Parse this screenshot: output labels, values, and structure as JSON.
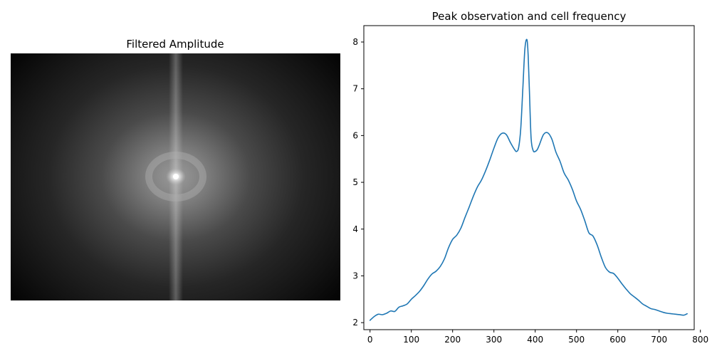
{
  "left_panel": {
    "title": "Filtered Amplitude"
  },
  "chart_data": {
    "type": "line",
    "title": "Peak observation and cell frequency",
    "xlabel": "",
    "ylabel": "",
    "xlim": [
      -15,
      785
    ],
    "ylim": [
      1.85,
      8.35
    ],
    "xticks": [
      0,
      100,
      200,
      300,
      400,
      500,
      600,
      700,
      800
    ],
    "yticks": [
      2,
      3,
      4,
      5,
      6,
      7,
      8
    ],
    "grid": false,
    "series": [
      {
        "color": "#1f77b4",
        "x": [
          0,
          10,
          20,
          30,
          40,
          50,
          60,
          70,
          80,
          90,
          100,
          110,
          120,
          130,
          140,
          150,
          160,
          170,
          180,
          190,
          200,
          210,
          220,
          230,
          240,
          250,
          260,
          270,
          280,
          290,
          300,
          310,
          320,
          330,
          340,
          350,
          355,
          360,
          365,
          370,
          375,
          380,
          383,
          386,
          390,
          395,
          400,
          405,
          410,
          420,
          430,
          440,
          450,
          460,
          470,
          480,
          490,
          500,
          510,
          520,
          530,
          540,
          550,
          560,
          570,
          580,
          590,
          600,
          610,
          620,
          630,
          640,
          650,
          660,
          670,
          680,
          690,
          700,
          710,
          720,
          730,
          740,
          750,
          760,
          768
        ],
        "values": [
          2.05,
          2.13,
          2.18,
          2.17,
          2.2,
          2.25,
          2.24,
          2.33,
          2.36,
          2.4,
          2.5,
          2.58,
          2.67,
          2.79,
          2.93,
          3.04,
          3.1,
          3.2,
          3.36,
          3.6,
          3.78,
          3.87,
          4.02,
          4.25,
          4.47,
          4.7,
          4.9,
          5.05,
          5.25,
          5.48,
          5.73,
          5.95,
          6.05,
          6.02,
          5.85,
          5.7,
          5.66,
          5.75,
          6.15,
          7.0,
          7.85,
          8.05,
          7.7,
          6.95,
          5.95,
          5.68,
          5.66,
          5.7,
          5.8,
          6.02,
          6.06,
          5.93,
          5.65,
          5.45,
          5.2,
          5.05,
          4.85,
          4.6,
          4.42,
          4.18,
          3.92,
          3.85,
          3.66,
          3.4,
          3.18,
          3.08,
          3.05,
          2.95,
          2.83,
          2.72,
          2.62,
          2.55,
          2.48,
          2.4,
          2.35,
          2.3,
          2.28,
          2.25,
          2.22,
          2.2,
          2.19,
          2.18,
          2.17,
          2.16,
          2.19
        ]
      }
    ]
  }
}
